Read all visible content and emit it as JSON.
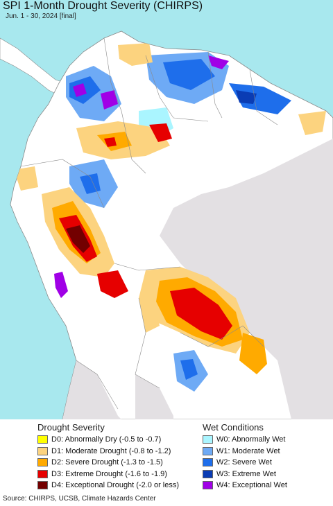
{
  "title": "SPI 1-Month Drought Severity (CHIRPS)",
  "subtitle": "Jun. 1 - 30, 2024 [final]",
  "map": {
    "ocean_color": "#a8e8ee",
    "land_color": "#ffffff",
    "outside_land_color": "#e3e0e3",
    "border_color": "#8a8a8a"
  },
  "legend": {
    "drought": {
      "heading": "Drought Severity",
      "items": [
        {
          "label": "D0: Abnormally Dry (-0.5 to -0.7)",
          "color": "#ffff00"
        },
        {
          "label": "D1: Moderate Drought (-0.8 to -1.2)",
          "color": "#fcd37f"
        },
        {
          "label": "D2: Severe Drought (-1.3 to -1.5)",
          "color": "#ffaa00"
        },
        {
          "label": "D3: Extreme Drought (-1.6 to -1.9)",
          "color": "#e60000"
        },
        {
          "label": "D4: Exceptional Drought (-2.0 or less)",
          "color": "#730000"
        }
      ]
    },
    "wet": {
      "heading": "Wet Conditions",
      "items": [
        {
          "label": "W0: Abnormally Wet",
          "color": "#aaf5ff"
        },
        {
          "label": "W1: Moderate Wet",
          "color": "#6eaaf5"
        },
        {
          "label": "W2: Severe Wet",
          "color": "#1e6eeb"
        },
        {
          "label": "W3: Extreme Wet",
          "color": "#0a3cb4"
        },
        {
          "label": "W4: Exceptional Wet",
          "color": "#a000e6"
        }
      ]
    }
  },
  "source": "Source: CHIRPS, UCSB, Climate Hazards Center"
}
